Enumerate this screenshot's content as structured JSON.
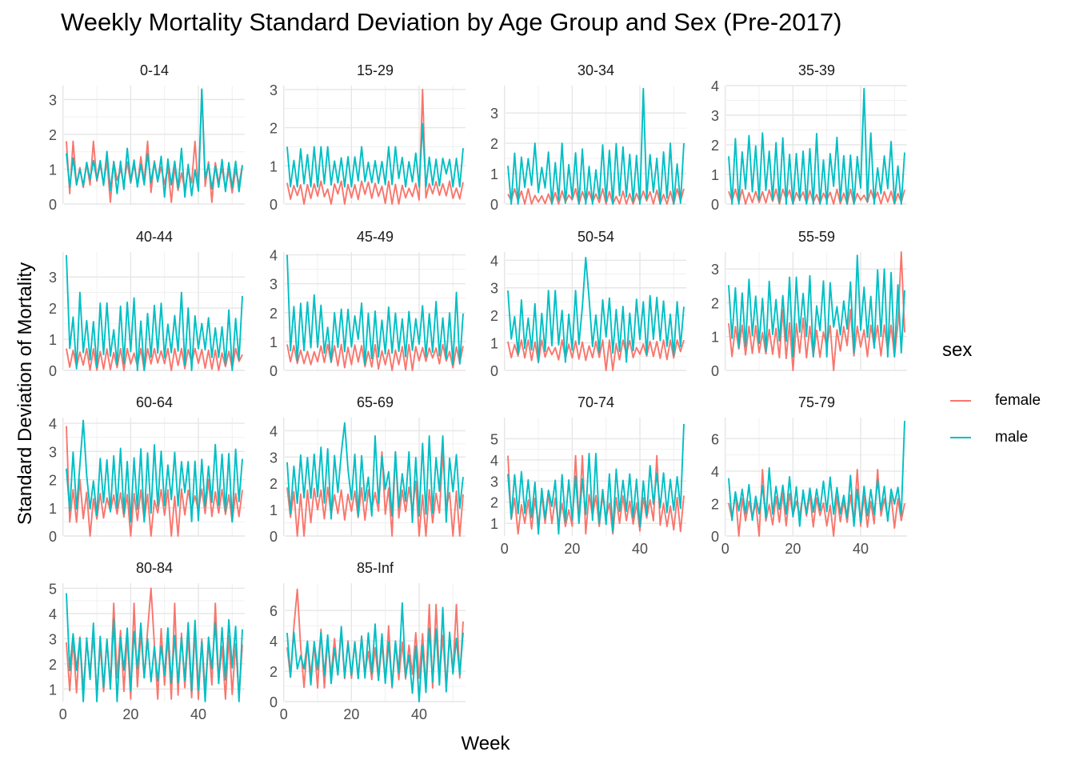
{
  "title": "Weekly Mortality Standard Deviation by Age Group and Sex (Pre-2017)",
  "chart_data": {
    "type": "line",
    "title": "Weekly Mortality Standard Deviation by Age Group and Sex (Pre-2017)",
    "xlabel": "Week",
    "ylabel": "Standard Deviation of Mortality",
    "legend": {
      "title": "sex",
      "position": "right"
    },
    "grid": true,
    "series_styles": [
      {
        "name": "female",
        "color": "#F8766D"
      },
      {
        "name": "male",
        "color": "#00BFC4"
      }
    ],
    "x_range": [
      1,
      53
    ],
    "x_ticks": [
      0,
      20,
      40
    ],
    "facets": [
      {
        "label": "0-14",
        "ylim": [
          0,
          3.4
        ],
        "yticks": [
          0,
          1,
          2,
          3
        ],
        "female": {
          "base": 0.8,
          "amp": 0.35,
          "min": 0.05,
          "max": 1.8,
          "peak": {
            "week": 41,
            "value": 3.3
          }
        },
        "male": {
          "base": 0.85,
          "amp": 0.4,
          "min": 0.2,
          "max": 1.6,
          "peak": {
            "week": 41,
            "value": 3.3
          }
        }
      },
      {
        "label": "15-29",
        "ylim": [
          0,
          3.1
        ],
        "yticks": [
          0,
          1,
          2,
          3
        ],
        "female": {
          "base": 0.35,
          "amp": 0.2,
          "min": 0.0,
          "max": 0.6,
          "peak": {
            "week": 41,
            "value": 3.0
          }
        },
        "male": {
          "base": 0.9,
          "amp": 0.4,
          "min": 0.45,
          "max": 1.5,
          "peak": {
            "week": 41,
            "value": 2.1
          }
        }
      },
      {
        "label": "30-34",
        "ylim": [
          0,
          3.9
        ],
        "yticks": [
          0,
          1,
          2,
          3
        ],
        "female": {
          "base": 0.2,
          "amp": 0.2,
          "min": 0.0,
          "max": 0.5,
          "peak": null
        },
        "male": {
          "base": 0.9,
          "amp": 0.8,
          "min": 0.0,
          "max": 2.0,
          "peak": {
            "week": 41,
            "value": 3.8
          }
        }
      },
      {
        "label": "35-39",
        "ylim": [
          0,
          4.0
        ],
        "yticks": [
          0,
          1,
          2,
          3,
          4
        ],
        "female": {
          "base": 0.25,
          "amp": 0.2,
          "min": 0.0,
          "max": 0.5,
          "peak": null
        },
        "male": {
          "base": 1.0,
          "amp": 0.9,
          "min": 0.0,
          "max": 2.4,
          "peak": {
            "week": 41,
            "value": 3.9
          }
        }
      },
      {
        "label": "40-44",
        "ylim": [
          0,
          3.8
        ],
        "yticks": [
          0,
          1,
          2,
          3
        ],
        "female": {
          "base": 0.4,
          "amp": 0.3,
          "min": 0.0,
          "max": 0.7,
          "peak": null
        },
        "male": {
          "base": 1.1,
          "amp": 0.8,
          "min": 0.0,
          "max": 2.5,
          "peak": {
            "week": 1,
            "value": 3.7
          }
        }
      },
      {
        "label": "45-49",
        "ylim": [
          0,
          4.1
        ],
        "yticks": [
          0,
          1,
          2,
          3,
          4
        ],
        "female": {
          "base": 0.5,
          "amp": 0.3,
          "min": 0.0,
          "max": 0.9,
          "peak": null
        },
        "male": {
          "base": 1.3,
          "amp": 0.8,
          "min": 0.2,
          "max": 2.7,
          "peak": {
            "week": 1,
            "value": 4.0
          }
        }
      },
      {
        "label": "50-54",
        "ylim": [
          0,
          4.3
        ],
        "yticks": [
          0,
          1,
          2,
          3,
          4
        ],
        "female": {
          "base": 0.75,
          "amp": 0.3,
          "min": 0.0,
          "max": 1.1,
          "peak": null
        },
        "male": {
          "base": 1.5,
          "amp": 0.8,
          "min": 0.3,
          "max": 2.9,
          "peak": {
            "week": 24,
            "value": 4.1
          }
        }
      },
      {
        "label": "55-59",
        "ylim": [
          0,
          3.5
        ],
        "yticks": [
          0,
          1,
          2,
          3
        ],
        "female": {
          "base": 0.9,
          "amp": 0.4,
          "min": 0.0,
          "max": 1.8,
          "peak": {
            "week": 52,
            "value": 3.5
          }
        },
        "male": {
          "base": 1.6,
          "amp": 0.9,
          "min": 0.4,
          "max": 3.4,
          "peak": null
        }
      },
      {
        "label": "60-64",
        "ylim": [
          0,
          4.2
        ],
        "yticks": [
          0,
          1,
          2,
          3,
          4
        ],
        "female": {
          "base": 1.1,
          "amp": 0.4,
          "min": 0.0,
          "max": 2.0,
          "peak": {
            "week": 1,
            "value": 3.9
          }
        },
        "male": {
          "base": 1.8,
          "amp": 0.9,
          "min": 0.5,
          "max": 3.6,
          "peak": {
            "week": 6,
            "value": 4.1
          }
        }
      },
      {
        "label": "65-69",
        "ylim": [
          0,
          4.5
        ],
        "yticks": [
          0,
          1,
          2,
          3,
          4
        ],
        "female": {
          "base": 1.3,
          "amp": 0.5,
          "min": 0.0,
          "max": 3.2,
          "peak": null
        },
        "male": {
          "base": 2.0,
          "amp": 0.9,
          "min": 0.5,
          "max": 3.8,
          "peak": {
            "week": 18,
            "value": 4.3
          }
        }
      },
      {
        "label": "70-74",
        "ylim": [
          0.4,
          6.0
        ],
        "yticks": [
          1,
          2,
          3,
          4,
          5
        ],
        "female": {
          "base": 1.5,
          "amp": 0.6,
          "min": 0.5,
          "max": 4.2,
          "peak": null
        },
        "male": {
          "base": 2.2,
          "amp": 1.0,
          "min": 0.5,
          "max": 4.3,
          "peak": {
            "week": 53,
            "value": 5.7
          }
        }
      },
      {
        "label": "75-79",
        "ylim": [
          0,
          7.3
        ],
        "yticks": [
          0,
          2,
          4,
          6
        ],
        "female": {
          "base": 1.6,
          "amp": 0.7,
          "min": 0.0,
          "max": 4.1,
          "peak": null
        },
        "male": {
          "base": 2.2,
          "amp": 1.0,
          "min": 0.6,
          "max": 4.2,
          "peak": {
            "week": 53,
            "value": 7.1
          }
        }
      },
      {
        "label": "80-84",
        "ylim": [
          0.5,
          5.2
        ],
        "yticks": [
          1,
          2,
          3,
          4,
          5
        ],
        "female": {
          "base": 2.0,
          "amp": 1.0,
          "min": 0.6,
          "max": 4.4,
          "peak": {
            "week": 26,
            "value": 5.0
          }
        },
        "male": {
          "base": 2.3,
          "amp": 1.0,
          "min": 0.5,
          "max": 4.5,
          "peak": {
            "week": 1,
            "value": 4.8
          }
        }
      },
      {
        "label": "85-Inf",
        "ylim": [
          0,
          7.8
        ],
        "yticks": [
          0,
          2,
          4,
          6
        ],
        "female": {
          "base": 2.8,
          "amp": 1.6,
          "min": 0.9,
          "max": 6.4,
          "peak": {
            "week": 4,
            "value": 7.4
          }
        },
        "male": {
          "base": 2.8,
          "amp": 1.4,
          "min": 0.0,
          "max": 6.2,
          "peak": {
            "week": 35,
            "value": 6.5
          }
        }
      }
    ]
  }
}
